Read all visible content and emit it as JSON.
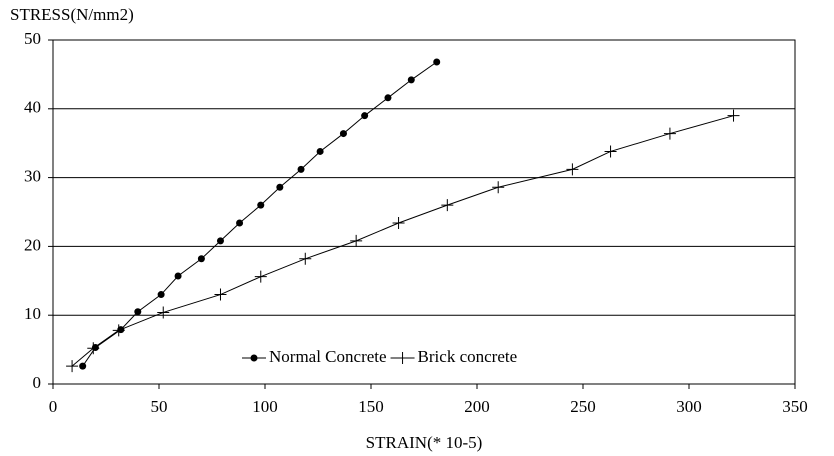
{
  "chart_data": {
    "type": "line",
    "ylabel": "STRESS(N/mm2)",
    "xlabel": "STRAIN(* 10-5)",
    "xlim": [
      0,
      350
    ],
    "xticks": [
      0,
      50,
      100,
      150,
      200,
      250,
      300,
      350
    ],
    "ylim": [
      0,
      50
    ],
    "yticks": [
      0,
      10,
      20,
      30,
      40,
      50
    ],
    "grid": true,
    "legend": "bottom",
    "series": [
      {
        "name": "Normal Concrete",
        "color": "#000000",
        "marker": "dot",
        "x": [
          14,
          20,
          32,
          40,
          51,
          59,
          70,
          79,
          88,
          98,
          107,
          117,
          126,
          137,
          147,
          158,
          169,
          181
        ],
        "values": [
          2.6,
          5.3,
          7.9,
          10.5,
          13,
          15.7,
          18.2,
          20.8,
          23.4,
          26,
          28.6,
          31.2,
          33.8,
          36.4,
          39,
          41.6,
          44.2,
          46.8
        ]
      },
      {
        "name": "Brick concrete",
        "color": "#000000",
        "marker": "plus",
        "x": [
          9,
          19,
          31,
          52,
          79,
          98,
          119,
          143,
          163,
          186,
          210,
          245,
          263,
          291,
          321
        ],
        "values": [
          2.6,
          5.2,
          7.8,
          10.4,
          13,
          15.6,
          18.2,
          20.8,
          23.4,
          26,
          28.6,
          31.2,
          33.8,
          36.4,
          39
        ]
      }
    ]
  }
}
